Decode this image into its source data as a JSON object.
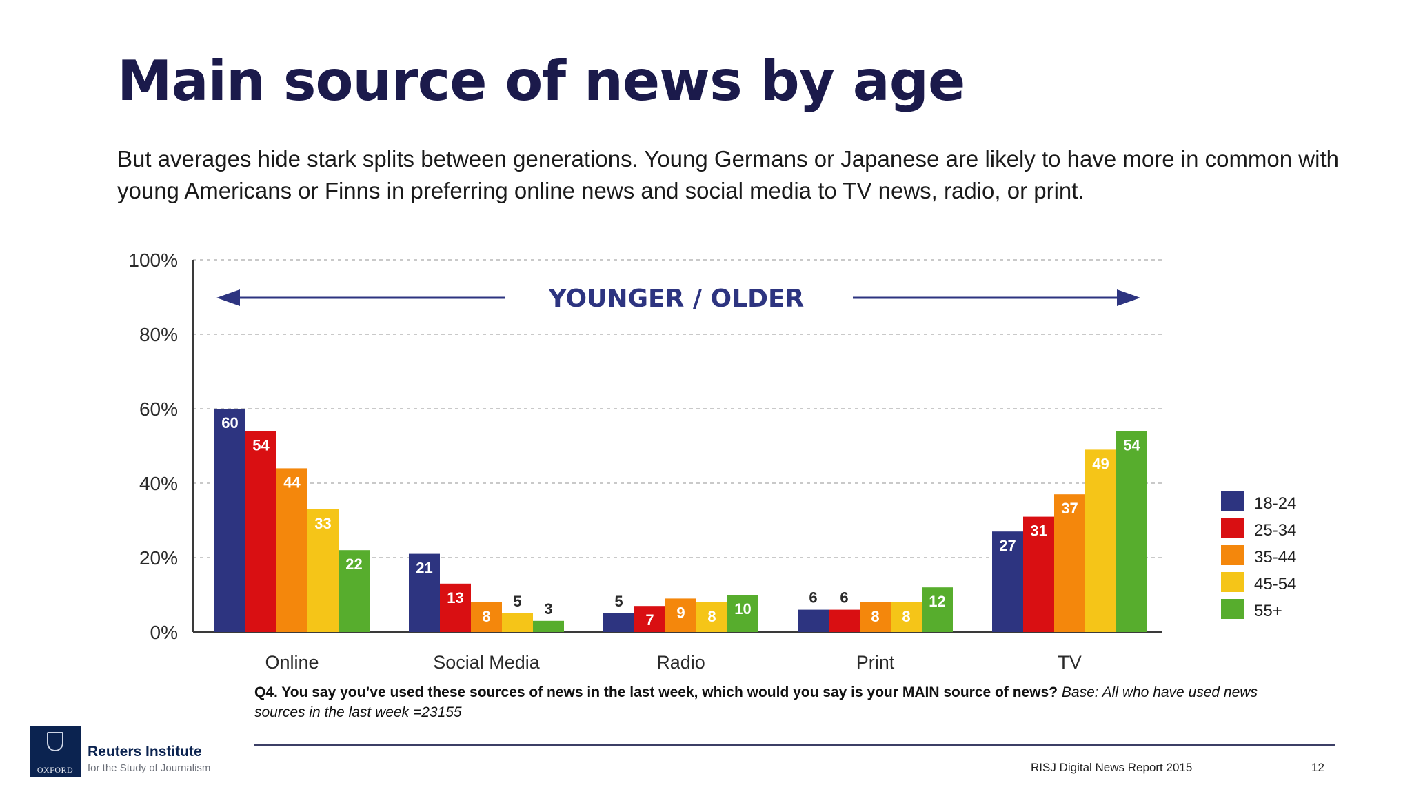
{
  "page": {
    "title": "Main source of news by age",
    "subtitle": "But averages hide stark splits between generations. Young Germans or Japanese are likely to have more in common with young Americans or Finns in preferring online news and social media to TV news, radio, or print."
  },
  "chart_data": {
    "type": "bar",
    "categories": [
      "Online",
      "Social Media",
      "Radio",
      "Print",
      "TV"
    ],
    "series": [
      {
        "name": "18-24",
        "color": "#2d3480",
        "values": [
          60,
          21,
          5,
          6,
          27
        ]
      },
      {
        "name": "25-34",
        "color": "#d90f12",
        "values": [
          54,
          13,
          7,
          6,
          31
        ]
      },
      {
        "name": "35-44",
        "color": "#f4870c",
        "values": [
          44,
          8,
          9,
          8,
          37
        ]
      },
      {
        "name": "45-54",
        "color": "#f5c518",
        "values": [
          33,
          5,
          8,
          8,
          49
        ]
      },
      {
        "name": "55+",
        "color": "#57ad2d",
        "values": [
          22,
          3,
          10,
          12,
          54
        ]
      }
    ],
    "ylim": [
      0,
      100
    ],
    "yticks": [
      0,
      20,
      40,
      60,
      80,
      100
    ],
    "ytick_labels": [
      "0%",
      "20%",
      "40%",
      "60%",
      "80%",
      "100%"
    ],
    "grid": true,
    "legend_position": "right",
    "annotation": "YOUNGER / OLDER"
  },
  "footnote": {
    "question": "Q4. You say you’ve used these sources of news in the last week, which would you say is your MAIN source of news?",
    "base": "Base: All who have used news sources in the last week =23155"
  },
  "footer": {
    "logo_text": "OXFORD",
    "institute_name": "Reuters Institute",
    "institute_sub": "for the Study of Journalism",
    "report": "RISJ Digital News Report 2015",
    "page_number": "12"
  }
}
